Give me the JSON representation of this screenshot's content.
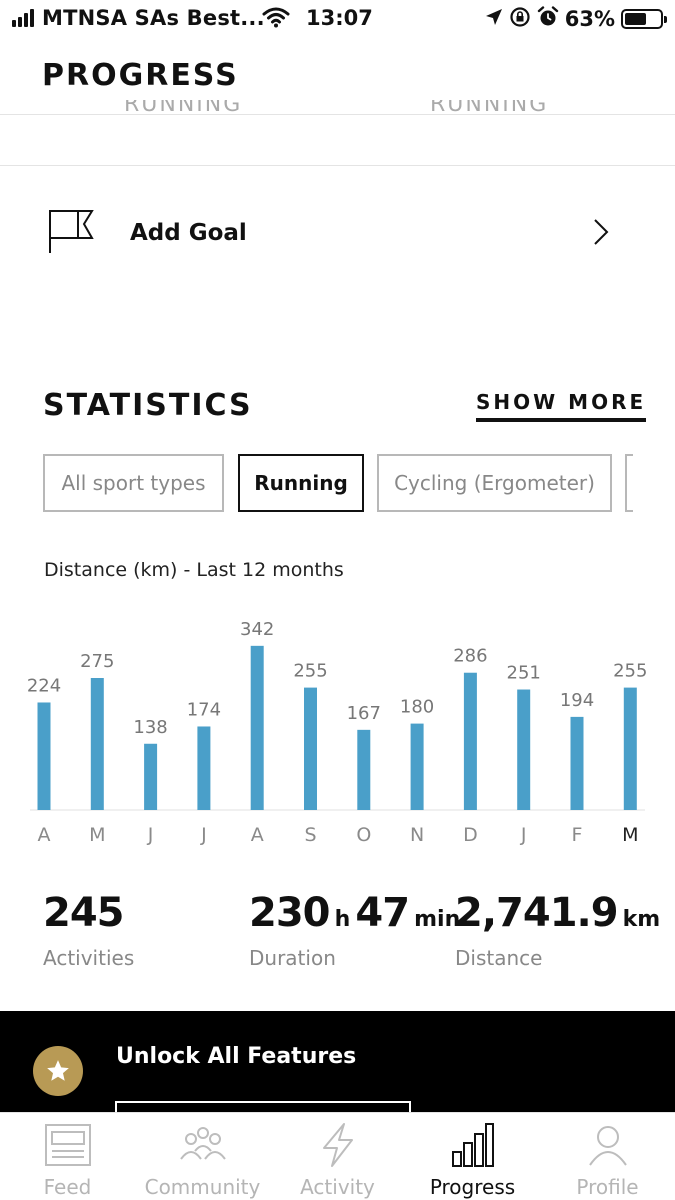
{
  "status_bar": {
    "carrier": "MTNSA SAs Best...",
    "time": "13:07",
    "battery": "63%",
    "battery_level": 0.63
  },
  "header": {
    "title": "PROGRESS"
  },
  "goal": {
    "label": "Add Goal"
  },
  "statistics": {
    "title": "STATISTICS",
    "show_more": "SHOW MORE",
    "filters": [
      {
        "label": "All sport types",
        "active": false
      },
      {
        "label": "Running",
        "active": true
      },
      {
        "label": "Cycling (Ergometer)",
        "active": false
      }
    ],
    "chart_title": "Distance (km) - Last 12 months"
  },
  "chart_data": {
    "type": "bar",
    "title": "Distance (km) - Last 12 months",
    "categories": [
      "A",
      "M",
      "J",
      "J",
      "A",
      "S",
      "O",
      "N",
      "D",
      "J",
      "F",
      "M"
    ],
    "values": [
      224,
      275,
      138,
      174,
      342,
      255,
      167,
      180,
      286,
      251,
      194,
      255
    ],
    "bar_color": "#4a9fc9",
    "highlight_category_index": 11
  },
  "summary": {
    "activities": {
      "value": "245",
      "label": "Activities"
    },
    "duration": {
      "hours": "230",
      "h_unit": "h",
      "minutes": "47",
      "min_unit": "min",
      "label": "Duration"
    },
    "distance": {
      "value": "2,741.9",
      "unit": "km",
      "label": "Distance"
    }
  },
  "unlock": {
    "title": "Unlock All Features"
  },
  "tabs": [
    {
      "label": "Feed",
      "icon": "feed-icon",
      "active": false
    },
    {
      "label": "Community",
      "icon": "community-icon",
      "active": false
    },
    {
      "label": "Activity",
      "icon": "activity-icon",
      "active": false
    },
    {
      "label": "Progress",
      "icon": "progress-icon",
      "active": true
    },
    {
      "label": "Profile",
      "icon": "profile-icon",
      "active": false
    }
  ]
}
